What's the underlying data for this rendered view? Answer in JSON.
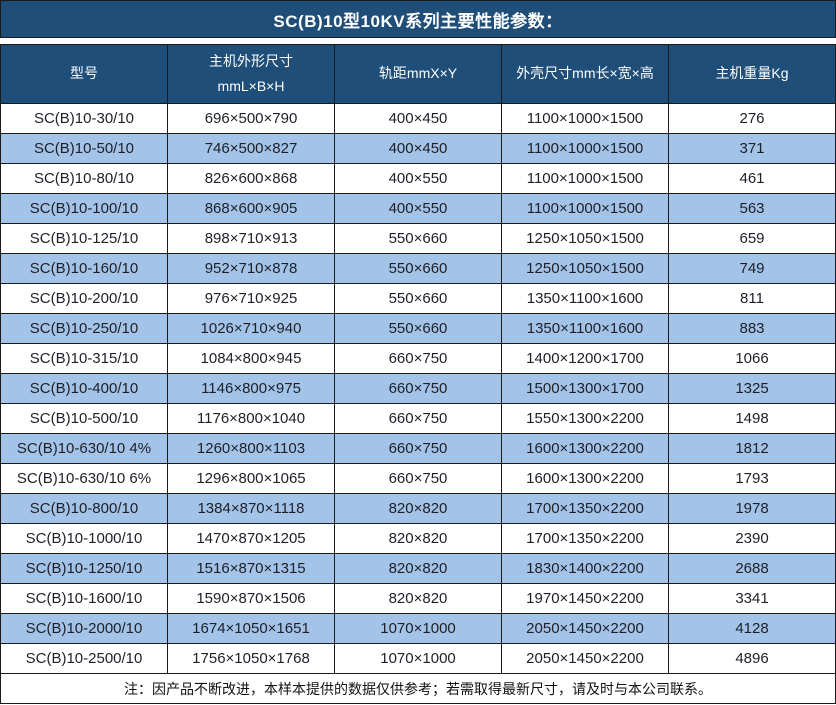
{
  "title": "SC(B)10型10KV系列主要性能参数：",
  "table": {
    "columns": [
      "型号",
      "主机外形尺寸\nmmL×B×H",
      "轨距mmX×Y",
      "外壳尺寸mm长×宽×高",
      "主机重量Kg"
    ],
    "column_keys": [
      "model",
      "host-dimensions",
      "rail-gauge",
      "shell-dimensions",
      "host-weight"
    ],
    "rows": [
      [
        "SC(B)10-30/10",
        "696×500×790",
        "400×450",
        "1100×1000×1500",
        "276"
      ],
      [
        "SC(B)10-50/10",
        "746×500×827",
        "400×450",
        "1100×1000×1500",
        "371"
      ],
      [
        "SC(B)10-80/10",
        "826×600×868",
        "400×550",
        "1100×1000×1500",
        "461"
      ],
      [
        "SC(B)10-100/10",
        "868×600×905",
        "400×550",
        "1100×1000×1500",
        "563"
      ],
      [
        "SC(B)10-125/10",
        "898×710×913",
        "550×660",
        "1250×1050×1500",
        "659"
      ],
      [
        "SC(B)10-160/10",
        "952×710×878",
        "550×660",
        "1250×1050×1500",
        "749"
      ],
      [
        "SC(B)10-200/10",
        "976×710×925",
        "550×660",
        "1350×1100×1600",
        "811"
      ],
      [
        "SC(B)10-250/10",
        "1026×710×940",
        "550×660",
        "1350×1100×1600",
        "883"
      ],
      [
        "SC(B)10-315/10",
        "1084×800×945",
        "660×750",
        "1400×1200×1700",
        "1066"
      ],
      [
        "SC(B)10-400/10",
        "1146×800×975",
        "660×750",
        "1500×1300×1700",
        "1325"
      ],
      [
        "SC(B)10-500/10",
        "1176×800×1040",
        "660×750",
        "1550×1300×2200",
        "1498"
      ],
      [
        "SC(B)10-630/10 4%",
        "1260×800×1103",
        "660×750",
        "1600×1300×2200",
        "1812"
      ],
      [
        "SC(B)10-630/10 6%",
        "1296×800×1065",
        "660×750",
        "1600×1300×2200",
        "1793"
      ],
      [
        "SC(B)10-800/10",
        "1384×870×1118",
        "820×820",
        "1700×1350×2200",
        "1978"
      ],
      [
        "SC(B)10-1000/10",
        "1470×870×1205",
        "820×820",
        "1700×1350×2200",
        "2390"
      ],
      [
        "SC(B)10-1250/10",
        "1516×870×1315",
        "820×820",
        "1830×1400×2200",
        "2688"
      ],
      [
        "SC(B)10-1600/10",
        "1590×870×1506",
        "820×820",
        "1970×1450×2200",
        "3341"
      ],
      [
        "SC(B)10-2000/10",
        "1674×1050×1651",
        "1070×1000",
        "2050×1450×2200",
        "4128"
      ],
      [
        "SC(B)10-2500/10",
        "1756×1050×1768",
        "1070×1000",
        "2050×1450×2200",
        "4896"
      ]
    ]
  },
  "note": "注：因产品不断改进，本样本提供的数据仅供参考；若需取得最新尺寸，请及时与本公司联系。",
  "colors": {
    "header_bg": "#1F4E79",
    "header_text": "#FFFFFF",
    "row_alt_bg": "#A3C4E8",
    "border": "#1A1A1A",
    "body_text": "#1F1F28"
  }
}
